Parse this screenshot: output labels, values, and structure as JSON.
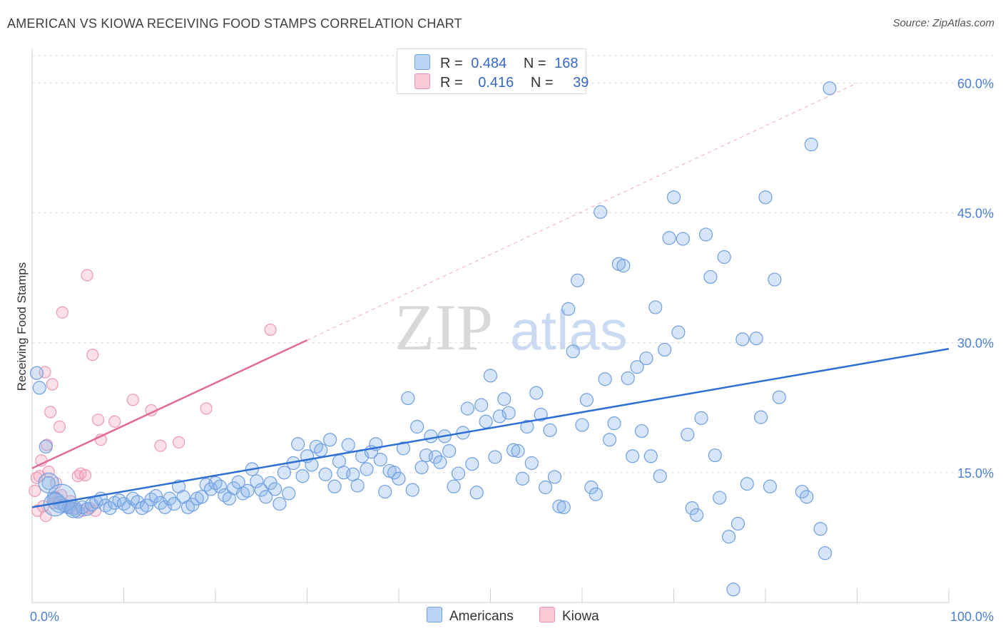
{
  "title": "AMERICAN VS KIOWA RECEIVING FOOD STAMPS CORRELATION CHART",
  "source": "Source: ZipAtlas.com",
  "watermark": {
    "zip": "ZIP",
    "atlas": "atlas"
  },
  "legend": {
    "r_label": "R =",
    "n_label": "N =",
    "americans": {
      "r": "0.484",
      "n": "168"
    },
    "kiowa": {
      "r": "0.416",
      "n": "39"
    }
  },
  "chart_data": {
    "type": "scatter",
    "title": "AMERICAN VS KIOWA RECEIVING FOOD STAMPS CORRELATION CHART",
    "xlabel": "",
    "ylabel": "Receiving Food Stamps",
    "xlim": [
      0,
      100
    ],
    "ylim": [
      0,
      63
    ],
    "x_tick_labels": [
      "0.0%",
      "100.0%"
    ],
    "y_ticks": [
      15,
      30,
      45,
      60
    ],
    "y_tick_labels": [
      "15.0%",
      "30.0%",
      "45.0%",
      "60.0%"
    ],
    "grid": "horizontal dashed",
    "legend_position": "top-center and bottom-center",
    "colors": {
      "americans": "#8ab4e8",
      "americans_line": "#2e6fd4",
      "kiowa": "#f4a7bd",
      "kiowa_line": "#e36b91"
    },
    "series": [
      {
        "name": "Americans",
        "trend": {
          "x": [
            0,
            100
          ],
          "y": [
            11.0,
            29.3
          ]
        },
        "points": [
          [
            0.5,
            26.5
          ],
          [
            0.8,
            24.8
          ],
          [
            1.5,
            18.0
          ],
          [
            1.8,
            13.8
          ],
          [
            2.5,
            12.0
          ],
          [
            3.0,
            11.5
          ],
          [
            3.5,
            11.2
          ],
          [
            4.0,
            11.0
          ],
          [
            4.5,
            10.8
          ],
          [
            5.0,
            10.5
          ],
          [
            5.5,
            11.0
          ],
          [
            6.0,
            10.8
          ],
          [
            6.5,
            11.3
          ],
          [
            7.0,
            11.6
          ],
          [
            7.5,
            12.0
          ],
          [
            8.0,
            11.2
          ],
          [
            8.5,
            10.9
          ],
          [
            9.0,
            11.5
          ],
          [
            9.5,
            11.8
          ],
          [
            10.0,
            11.4
          ],
          [
            10.5,
            11.0
          ],
          [
            11.0,
            12.0
          ],
          [
            11.5,
            11.6
          ],
          [
            12.0,
            10.9
          ],
          [
            12.5,
            11.2
          ],
          [
            13.0,
            11.9
          ],
          [
            13.5,
            12.3
          ],
          [
            14.0,
            11.5
          ],
          [
            14.5,
            11.0
          ],
          [
            15.0,
            12.0
          ],
          [
            15.5,
            11.4
          ],
          [
            16.0,
            13.4
          ],
          [
            16.5,
            12.2
          ],
          [
            17.0,
            11.0
          ],
          [
            17.5,
            11.3
          ],
          [
            18.0,
            12.0
          ],
          [
            18.5,
            12.2
          ],
          [
            19.0,
            13.6
          ],
          [
            19.5,
            13.1
          ],
          [
            20.0,
            13.8
          ],
          [
            20.5,
            13.4
          ],
          [
            21.0,
            12.4
          ],
          [
            21.5,
            12.0
          ],
          [
            22.0,
            13.2
          ],
          [
            22.5,
            13.9
          ],
          [
            23.0,
            12.6
          ],
          [
            23.5,
            12.9
          ],
          [
            24.0,
            15.4
          ],
          [
            24.5,
            14.0
          ],
          [
            25.0,
            13.0
          ],
          [
            25.5,
            12.2
          ],
          [
            26.0,
            13.8
          ],
          [
            26.5,
            13.1
          ],
          [
            27.0,
            11.4
          ],
          [
            27.5,
            15.0
          ],
          [
            28.0,
            12.6
          ],
          [
            28.5,
            16.1
          ],
          [
            29.0,
            18.3
          ],
          [
            29.5,
            14.6
          ],
          [
            30.0,
            16.9
          ],
          [
            30.5,
            15.9
          ],
          [
            31.0,
            18.0
          ],
          [
            31.5,
            17.6
          ],
          [
            32.0,
            14.8
          ],
          [
            32.5,
            18.8
          ],
          [
            33.0,
            13.4
          ],
          [
            33.5,
            16.3
          ],
          [
            34.0,
            15.0
          ],
          [
            34.5,
            18.2
          ],
          [
            35.0,
            14.8
          ],
          [
            35.5,
            13.5
          ],
          [
            36.0,
            16.9
          ],
          [
            36.5,
            15.4
          ],
          [
            37.0,
            17.4
          ],
          [
            37.5,
            18.3
          ],
          [
            38.0,
            16.5
          ],
          [
            38.5,
            12.8
          ],
          [
            39.0,
            15.2
          ],
          [
            39.5,
            15.0
          ],
          [
            40.0,
            14.3
          ],
          [
            40.5,
            17.8
          ],
          [
            41.0,
            23.6
          ],
          [
            41.5,
            13.0
          ],
          [
            42.0,
            20.3
          ],
          [
            42.5,
            15.6
          ],
          [
            43.0,
            17.0
          ],
          [
            43.5,
            19.2
          ],
          [
            44.0,
            16.8
          ],
          [
            44.5,
            16.2
          ],
          [
            45.0,
            19.2
          ],
          [
            45.5,
            17.5
          ],
          [
            46.0,
            13.4
          ],
          [
            46.5,
            14.9
          ],
          [
            47.0,
            19.6
          ],
          [
            47.5,
            22.4
          ],
          [
            48.0,
            16.0
          ],
          [
            48.5,
            12.7
          ],
          [
            49.0,
            22.8
          ],
          [
            49.5,
            20.9
          ],
          [
            50.0,
            26.2
          ],
          [
            50.5,
            16.8
          ],
          [
            51.0,
            21.5
          ],
          [
            51.5,
            23.5
          ],
          [
            52.0,
            21.9
          ],
          [
            52.5,
            17.6
          ],
          [
            53.0,
            17.5
          ],
          [
            53.5,
            14.3
          ],
          [
            54.0,
            20.3
          ],
          [
            54.5,
            16.1
          ],
          [
            55.0,
            24.2
          ],
          [
            55.5,
            21.7
          ],
          [
            56.0,
            13.3
          ],
          [
            56.5,
            19.9
          ],
          [
            57.0,
            14.5
          ],
          [
            57.5,
            11.1
          ],
          [
            58.0,
            11.0
          ],
          [
            58.5,
            33.9
          ],
          [
            59.0,
            29.0
          ],
          [
            59.5,
            37.2
          ],
          [
            60.0,
            20.5
          ],
          [
            60.5,
            23.4
          ],
          [
            61.0,
            13.3
          ],
          [
            61.5,
            12.5
          ],
          [
            62.0,
            45.1
          ],
          [
            62.5,
            25.8
          ],
          [
            63.0,
            18.8
          ],
          [
            63.5,
            20.7
          ],
          [
            64.0,
            39.1
          ],
          [
            64.5,
            38.9
          ],
          [
            65.0,
            25.9
          ],
          [
            65.5,
            16.9
          ],
          [
            66.0,
            27.2
          ],
          [
            66.5,
            19.8
          ],
          [
            67.0,
            28.2
          ],
          [
            67.5,
            16.9
          ],
          [
            68.0,
            34.1
          ],
          [
            68.5,
            14.6
          ],
          [
            69.0,
            29.2
          ],
          [
            69.5,
            42.1
          ],
          [
            70.0,
            46.8
          ],
          [
            70.5,
            31.2
          ],
          [
            71.0,
            42.0
          ],
          [
            71.5,
            19.4
          ],
          [
            72.0,
            10.9
          ],
          [
            72.5,
            10.1
          ],
          [
            73.0,
            21.3
          ],
          [
            73.5,
            42.5
          ],
          [
            74.0,
            37.6
          ],
          [
            74.5,
            17.0
          ],
          [
            75.0,
            12.1
          ],
          [
            75.5,
            39.9
          ],
          [
            76.0,
            7.6
          ],
          [
            76.5,
            1.5
          ],
          [
            77.0,
            9.1
          ],
          [
            77.5,
            30.4
          ],
          [
            78.0,
            13.7
          ],
          [
            79.0,
            30.5
          ],
          [
            79.5,
            21.4
          ],
          [
            80.0,
            46.8
          ],
          [
            80.5,
            13.4
          ],
          [
            81.0,
            37.3
          ],
          [
            81.5,
            23.7
          ],
          [
            84.0,
            12.8
          ],
          [
            84.5,
            12.2
          ],
          [
            85.0,
            52.9
          ],
          [
            86.0,
            8.5
          ],
          [
            86.5,
            5.7
          ],
          [
            87.0,
            59.4
          ]
        ]
      },
      {
        "name": "Kiowa",
        "trend": {
          "x": [
            0,
            30
          ],
          "y": [
            15.5,
            30.3
          ]
        },
        "trend_extended": {
          "x": [
            30,
            90
          ],
          "y": [
            30.3,
            60
          ]
        },
        "points": [
          [
            0.3,
            12.9
          ],
          [
            0.5,
            14.4
          ],
          [
            0.6,
            10.6
          ],
          [
            0.8,
            14.6
          ],
          [
            1.0,
            16.4
          ],
          [
            1.2,
            11.1
          ],
          [
            1.4,
            26.6
          ],
          [
            1.5,
            10.0
          ],
          [
            1.6,
            18.2
          ],
          [
            1.8,
            15.1
          ],
          [
            2.0,
            22.0
          ],
          [
            2.2,
            25.2
          ],
          [
            2.4,
            11.5
          ],
          [
            2.5,
            12.2
          ],
          [
            2.6,
            13.8
          ],
          [
            3.0,
            20.3
          ],
          [
            3.2,
            12.4
          ],
          [
            3.3,
            33.5
          ],
          [
            3.6,
            11.2
          ],
          [
            4.0,
            11.0
          ],
          [
            4.2,
            11.7
          ],
          [
            4.6,
            10.9
          ],
          [
            5.0,
            14.6
          ],
          [
            5.3,
            14.9
          ],
          [
            5.5,
            10.6
          ],
          [
            5.8,
            14.7
          ],
          [
            6.0,
            37.8
          ],
          [
            6.3,
            10.9
          ],
          [
            6.6,
            28.6
          ],
          [
            6.9,
            10.6
          ],
          [
            7.2,
            21.1
          ],
          [
            7.5,
            18.8
          ],
          [
            9.0,
            20.9
          ],
          [
            11.0,
            23.4
          ],
          [
            13.0,
            22.2
          ],
          [
            14.0,
            18.1
          ],
          [
            16.0,
            18.5
          ],
          [
            19.0,
            22.4
          ],
          [
            26.0,
            31.5
          ]
        ]
      }
    ]
  }
}
